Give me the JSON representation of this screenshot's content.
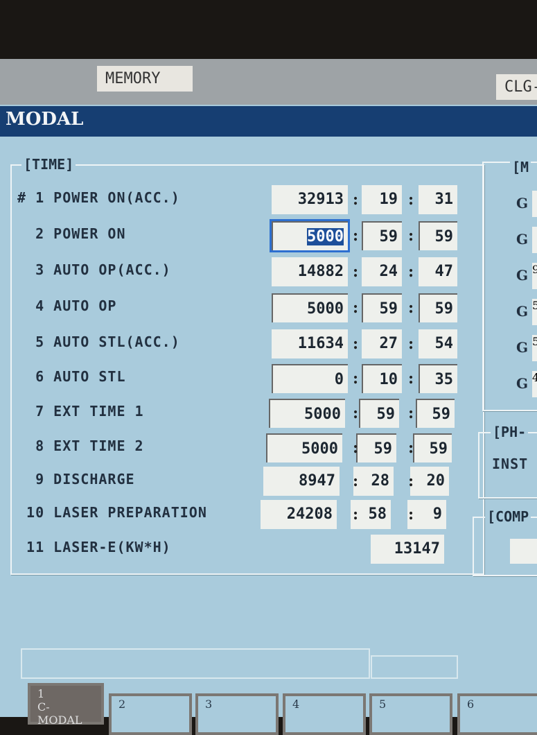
{
  "tabs": [
    {
      "label": "MEMORY"
    },
    {
      "label": "CLG-"
    }
  ],
  "header": {
    "title": "MODAL"
  },
  "time_panel": {
    "title": "[TIME]",
    "rows": [
      {
        "label": "# 1 POWER ON(ACC.)",
        "h": "32913",
        "m": "19",
        "s": "31",
        "editable": false
      },
      {
        "label": "  2 POWER ON",
        "h": "5000",
        "m": "59",
        "s": "59",
        "editable": true,
        "selected": true
      },
      {
        "label": "  3 AUTO OP(ACC.)",
        "h": "14882",
        "m": "24",
        "s": "47",
        "editable": false
      },
      {
        "label": "  4 AUTO OP",
        "h": "5000",
        "m": "59",
        "s": "59",
        "editable": true
      },
      {
        "label": "  5 AUTO STL(ACC.)",
        "h": "11634",
        "m": "27",
        "s": "54",
        "editable": false
      },
      {
        "label": "  6 AUTO STL",
        "h": "0",
        "m": "10",
        "s": "35",
        "editable": true
      },
      {
        "label": "  7 EXT TIME 1",
        "h": "5000",
        "m": "59",
        "s": "59",
        "editable": true
      },
      {
        "label": "  8 EXT TIME 2",
        "h": "5000",
        "m": "59",
        "s": "59",
        "editable": true
      },
      {
        "label": "  9 DISCHARGE",
        "h": "8947",
        "m": "28",
        "s": "20",
        "editable": false
      },
      {
        "label": " 10 LASER PREPARATION",
        "h": "24208",
        "m": "58",
        "s": "9",
        "editable": false
      }
    ],
    "energy": {
      "label": " 11 LASER-E(KW*H)",
      "value": "13147"
    },
    "colon": ":"
  },
  "modal_panel": {
    "title": "[M",
    "g_labels": [
      "G",
      "G",
      "G",
      "G",
      "G",
      "G"
    ],
    "g_values": [
      "",
      "",
      "9",
      "5",
      "5",
      "4"
    ]
  },
  "ph_panel": {
    "title": "[PH-",
    "text": "INST"
  },
  "comp_panel": {
    "title": "[COMP"
  },
  "softkeys": [
    {
      "num": "1",
      "label": "C-MODAL"
    },
    {
      "num": "2"
    },
    {
      "num": "3"
    },
    {
      "num": "4"
    },
    {
      "num": "5"
    },
    {
      "num": "6"
    }
  ],
  "colors": {
    "header": "#163e72",
    "background": "#a9cbdc",
    "selection": "#1d4f9a"
  }
}
